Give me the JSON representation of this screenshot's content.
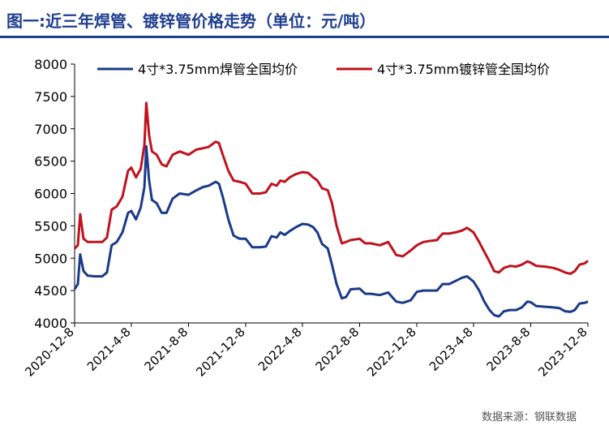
{
  "title": "图一:近三年焊管、镀锌管价格走势（单位：元/吨）",
  "source": "数据来源：钢联数据",
  "colors": {
    "title": "#1f3f8f",
    "series1": "#1a3a8a",
    "series2": "#c0121e",
    "axis": "#000000"
  },
  "chart_data": {
    "type": "line",
    "ylim": [
      4000,
      8000
    ],
    "yticks": [
      4000,
      4500,
      5000,
      5500,
      6000,
      6500,
      7000,
      7500,
      8000
    ],
    "xlim": [
      "2020-12-08",
      "2023-12-08"
    ],
    "xticks": [
      "2020-12-8",
      "2021-4-8",
      "2021-8-8",
      "2021-12-8",
      "2022-4-8",
      "2022-8-8",
      "2022-12-8",
      "2023-4-8",
      "2023-8-8",
      "2023-12-8"
    ],
    "legend_position": "top",
    "grid": false,
    "series": [
      {
        "name": "4寸*3.75mm焊管全国均价",
        "color": "#1a3a8a",
        "points": [
          [
            "2020-12-08",
            4520
          ],
          [
            "2020-12-15",
            4600
          ],
          [
            "2020-12-20",
            5060
          ],
          [
            "2020-12-27",
            4800
          ],
          [
            "2021-01-05",
            4730
          ],
          [
            "2021-01-20",
            4720
          ],
          [
            "2021-02-05",
            4720
          ],
          [
            "2021-02-15",
            4780
          ],
          [
            "2021-02-25",
            5200
          ],
          [
            "2021-03-08",
            5250
          ],
          [
            "2021-03-20",
            5400
          ],
          [
            "2021-04-01",
            5700
          ],
          [
            "2021-04-08",
            5730
          ],
          [
            "2021-04-18",
            5600
          ],
          [
            "2021-04-28",
            5780
          ],
          [
            "2021-05-06",
            6100
          ],
          [
            "2021-05-10",
            6730
          ],
          [
            "2021-05-16",
            6200
          ],
          [
            "2021-05-22",
            5900
          ],
          [
            "2021-06-01",
            5850
          ],
          [
            "2021-06-12",
            5700
          ],
          [
            "2021-06-22",
            5700
          ],
          [
            "2021-07-05",
            5920
          ],
          [
            "2021-07-20",
            6000
          ],
          [
            "2021-08-08",
            5980
          ],
          [
            "2021-08-25",
            6050
          ],
          [
            "2021-09-08",
            6100
          ],
          [
            "2021-09-20",
            6120
          ],
          [
            "2021-10-05",
            6180
          ],
          [
            "2021-10-12",
            6150
          ],
          [
            "2021-10-20",
            5950
          ],
          [
            "2021-11-01",
            5600
          ],
          [
            "2021-11-12",
            5350
          ],
          [
            "2021-11-25",
            5300
          ],
          [
            "2021-12-08",
            5300
          ],
          [
            "2021-12-22",
            5170
          ],
          [
            "2022-01-08",
            5170
          ],
          [
            "2022-01-20",
            5180
          ],
          [
            "2022-02-01",
            5340
          ],
          [
            "2022-02-12",
            5320
          ],
          [
            "2022-02-20",
            5400
          ],
          [
            "2022-03-01",
            5360
          ],
          [
            "2022-03-12",
            5420
          ],
          [
            "2022-03-25",
            5480
          ],
          [
            "2022-04-08",
            5530
          ],
          [
            "2022-04-20",
            5520
          ],
          [
            "2022-05-01",
            5480
          ],
          [
            "2022-05-10",
            5400
          ],
          [
            "2022-05-20",
            5220
          ],
          [
            "2022-06-01",
            5150
          ],
          [
            "2022-06-10",
            4900
          ],
          [
            "2022-06-20",
            4600
          ],
          [
            "2022-07-01",
            4380
          ],
          [
            "2022-07-10",
            4400
          ],
          [
            "2022-07-20",
            4520
          ],
          [
            "2022-08-08",
            4530
          ],
          [
            "2022-08-20",
            4450
          ],
          [
            "2022-09-01",
            4450
          ],
          [
            "2022-09-20",
            4430
          ],
          [
            "2022-10-08",
            4470
          ],
          [
            "2022-10-25",
            4330
          ],
          [
            "2022-11-08",
            4310
          ],
          [
            "2022-11-25",
            4350
          ],
          [
            "2022-12-08",
            4480
          ],
          [
            "2022-12-22",
            4500
          ],
          [
            "2023-01-08",
            4500
          ],
          [
            "2023-01-20",
            4500
          ],
          [
            "2023-02-01",
            4600
          ],
          [
            "2023-02-15",
            4600
          ],
          [
            "2023-03-01",
            4650
          ],
          [
            "2023-03-15",
            4700
          ],
          [
            "2023-03-25",
            4720
          ],
          [
            "2023-04-08",
            4640
          ],
          [
            "2023-04-20",
            4500
          ],
          [
            "2023-05-01",
            4330
          ],
          [
            "2023-05-12",
            4200
          ],
          [
            "2023-05-22",
            4120
          ],
          [
            "2023-06-01",
            4100
          ],
          [
            "2023-06-12",
            4180
          ],
          [
            "2023-06-25",
            4200
          ],
          [
            "2023-07-08",
            4200
          ],
          [
            "2023-07-20",
            4240
          ],
          [
            "2023-08-01",
            4330
          ],
          [
            "2023-08-08",
            4320
          ],
          [
            "2023-08-20",
            4260
          ],
          [
            "2023-09-08",
            4250
          ],
          [
            "2023-09-25",
            4240
          ],
          [
            "2023-10-08",
            4230
          ],
          [
            "2023-10-20",
            4180
          ],
          [
            "2023-11-01",
            4170
          ],
          [
            "2023-11-10",
            4200
          ],
          [
            "2023-11-20",
            4300
          ],
          [
            "2023-12-01",
            4310
          ],
          [
            "2023-12-08",
            4330
          ]
        ]
      },
      {
        "name": "4寸*3.75mm镀锌管全国均价",
        "color": "#c0121e",
        "points": [
          [
            "2020-12-08",
            5150
          ],
          [
            "2020-12-15",
            5200
          ],
          [
            "2020-12-20",
            5680
          ],
          [
            "2020-12-27",
            5300
          ],
          [
            "2021-01-05",
            5250
          ],
          [
            "2021-01-20",
            5250
          ],
          [
            "2021-02-05",
            5250
          ],
          [
            "2021-02-15",
            5320
          ],
          [
            "2021-02-25",
            5750
          ],
          [
            "2021-03-08",
            5800
          ],
          [
            "2021-03-20",
            5950
          ],
          [
            "2021-04-01",
            6350
          ],
          [
            "2021-04-08",
            6400
          ],
          [
            "2021-04-18",
            6250
          ],
          [
            "2021-04-28",
            6380
          ],
          [
            "2021-05-06",
            6750
          ],
          [
            "2021-05-10",
            7400
          ],
          [
            "2021-05-16",
            6900
          ],
          [
            "2021-05-22",
            6650
          ],
          [
            "2021-06-01",
            6600
          ],
          [
            "2021-06-12",
            6450
          ],
          [
            "2021-06-22",
            6420
          ],
          [
            "2021-07-05",
            6600
          ],
          [
            "2021-07-20",
            6650
          ],
          [
            "2021-08-08",
            6600
          ],
          [
            "2021-08-25",
            6680
          ],
          [
            "2021-09-08",
            6700
          ],
          [
            "2021-09-20",
            6720
          ],
          [
            "2021-10-05",
            6800
          ],
          [
            "2021-10-12",
            6780
          ],
          [
            "2021-10-20",
            6600
          ],
          [
            "2021-11-01",
            6350
          ],
          [
            "2021-11-12",
            6200
          ],
          [
            "2021-11-25",
            6180
          ],
          [
            "2021-12-08",
            6150
          ],
          [
            "2021-12-22",
            6000
          ],
          [
            "2022-01-08",
            6000
          ],
          [
            "2022-01-20",
            6020
          ],
          [
            "2022-02-01",
            6150
          ],
          [
            "2022-02-12",
            6120
          ],
          [
            "2022-02-20",
            6200
          ],
          [
            "2022-03-01",
            6180
          ],
          [
            "2022-03-12",
            6250
          ],
          [
            "2022-03-25",
            6300
          ],
          [
            "2022-04-08",
            6330
          ],
          [
            "2022-04-20",
            6320
          ],
          [
            "2022-05-01",
            6250
          ],
          [
            "2022-05-10",
            6200
          ],
          [
            "2022-05-20",
            6080
          ],
          [
            "2022-06-01",
            6050
          ],
          [
            "2022-06-10",
            5850
          ],
          [
            "2022-06-20",
            5500
          ],
          [
            "2022-07-01",
            5230
          ],
          [
            "2022-07-10",
            5250
          ],
          [
            "2022-07-20",
            5280
          ],
          [
            "2022-08-08",
            5300
          ],
          [
            "2022-08-20",
            5230
          ],
          [
            "2022-09-01",
            5230
          ],
          [
            "2022-09-20",
            5200
          ],
          [
            "2022-10-08",
            5250
          ],
          [
            "2022-10-25",
            5050
          ],
          [
            "2022-11-08",
            5030
          ],
          [
            "2022-11-25",
            5120
          ],
          [
            "2022-12-08",
            5200
          ],
          [
            "2022-12-22",
            5250
          ],
          [
            "2023-01-08",
            5270
          ],
          [
            "2023-01-20",
            5280
          ],
          [
            "2023-02-01",
            5380
          ],
          [
            "2023-02-15",
            5380
          ],
          [
            "2023-03-01",
            5400
          ],
          [
            "2023-03-15",
            5430
          ],
          [
            "2023-03-25",
            5470
          ],
          [
            "2023-04-08",
            5400
          ],
          [
            "2023-04-20",
            5250
          ],
          [
            "2023-05-01",
            5100
          ],
          [
            "2023-05-12",
            4950
          ],
          [
            "2023-05-22",
            4800
          ],
          [
            "2023-06-01",
            4780
          ],
          [
            "2023-06-12",
            4850
          ],
          [
            "2023-06-25",
            4880
          ],
          [
            "2023-07-08",
            4870
          ],
          [
            "2023-07-20",
            4900
          ],
          [
            "2023-08-01",
            4950
          ],
          [
            "2023-08-08",
            4930
          ],
          [
            "2023-08-20",
            4880
          ],
          [
            "2023-09-08",
            4870
          ],
          [
            "2023-09-25",
            4850
          ],
          [
            "2023-10-08",
            4820
          ],
          [
            "2023-10-20",
            4780
          ],
          [
            "2023-11-01",
            4760
          ],
          [
            "2023-11-10",
            4800
          ],
          [
            "2023-11-20",
            4900
          ],
          [
            "2023-12-01",
            4920
          ],
          [
            "2023-12-08",
            4960
          ]
        ]
      }
    ]
  }
}
